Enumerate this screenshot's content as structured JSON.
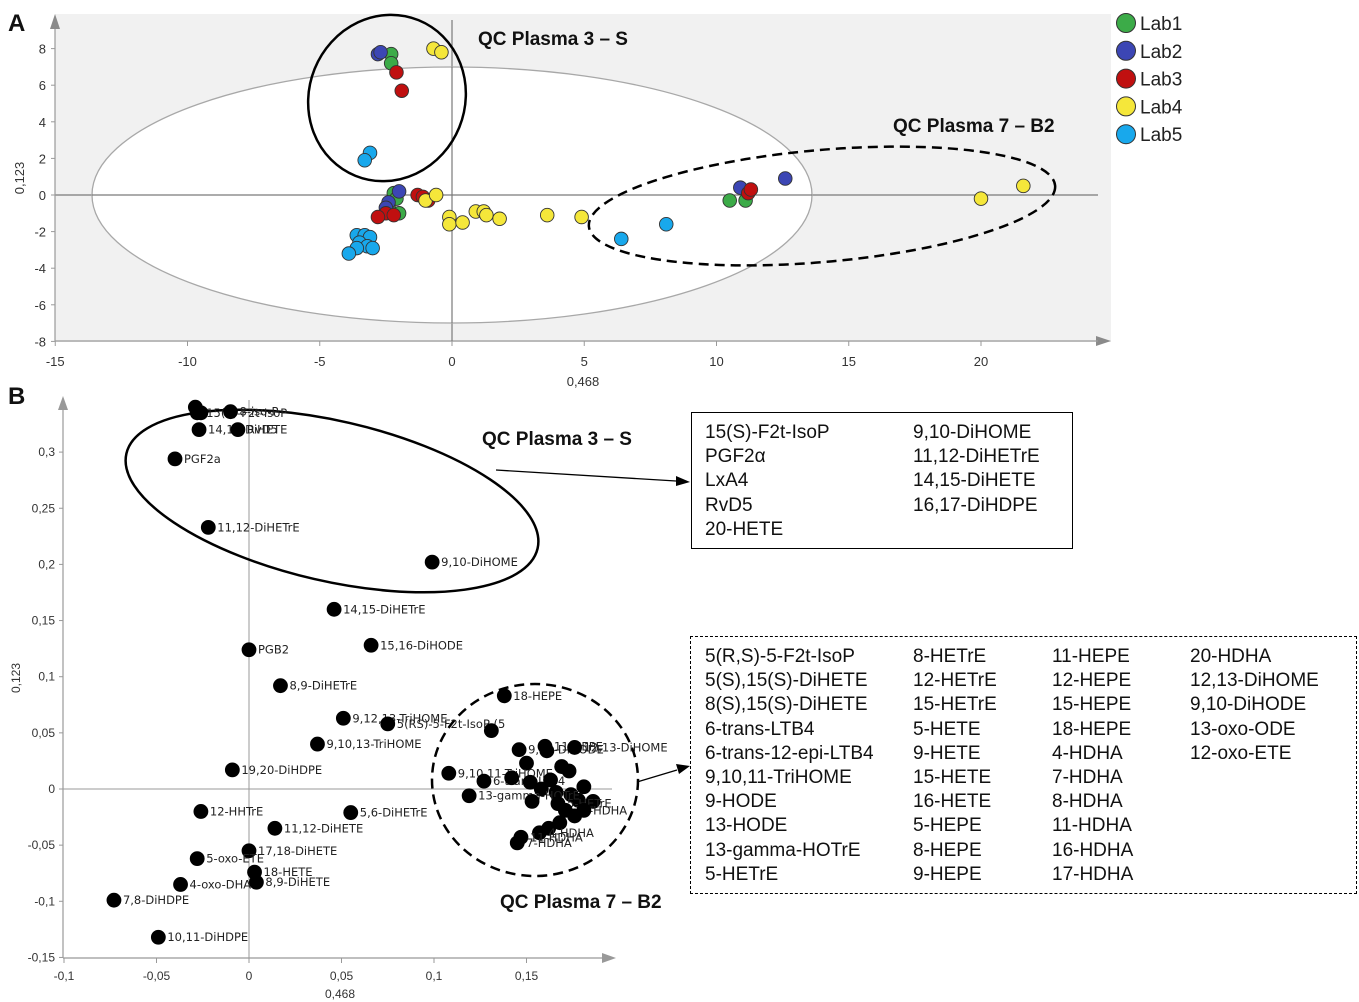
{
  "panelA": {
    "letter": "A",
    "xlabel": "0,468",
    "ylabel": "0,123",
    "xticks": [
      -15,
      -10,
      -5,
      0,
      5,
      10,
      15,
      20
    ],
    "yticks": [
      -8,
      -6,
      -4,
      -2,
      0,
      2,
      4,
      6,
      8
    ],
    "annotations": [
      "QC Plasma 3 – S",
      "QC Plasma 7 – B2"
    ],
    "legend": [
      {
        "name": "Lab1",
        "color": "#3cab48"
      },
      {
        "name": "Lab2",
        "color": "#3c46b4"
      },
      {
        "name": "Lab3",
        "color": "#c01010"
      },
      {
        "name": "Lab4",
        "color": "#f5e73a"
      },
      {
        "name": "Lab5",
        "color": "#18a8ec"
      }
    ]
  },
  "panelB": {
    "letter": "B",
    "xlabel": "0,468",
    "ylabel": "0,123",
    "xticks": [
      "-0,1",
      "-0,05",
      "0",
      "0,05",
      "0,1",
      "0,15"
    ],
    "yticks": [
      "-0,15",
      "-0,1",
      "-0,05",
      "0",
      "0,05",
      "0,1",
      "0,15",
      "0,2",
      "0,25",
      "0,3"
    ],
    "annotations": [
      "QC Plasma 3 – S",
      "QC Plasma 7 – B2"
    ]
  },
  "chart_data": [
    {
      "type": "scatter",
      "panel": "A",
      "xlabel": "0,468",
      "ylabel": "0,123",
      "xlim": [
        -15,
        24
      ],
      "ylim": [
        -8,
        9.5
      ],
      "grid": false,
      "legend_position": "top-right",
      "series": [
        {
          "name": "Lab1",
          "color": "#3cab48",
          "points": [
            [
              -2.3,
              7.7
            ],
            [
              -2.3,
              7.2
            ],
            [
              -2.2,
              0.1
            ],
            [
              -2.1,
              -0.2
            ],
            [
              -2.4,
              -0.6
            ],
            [
              -2.0,
              -1.0
            ],
            [
              10.5,
              -0.3
            ],
            [
              11.1,
              -0.3
            ]
          ]
        },
        {
          "name": "Lab2",
          "color": "#3c46b4",
          "points": [
            [
              -2.8,
              7.7
            ],
            [
              -2.7,
              7.8
            ],
            [
              -2.0,
              0.2
            ],
            [
              -2.4,
              -0.4
            ],
            [
              -2.5,
              -0.7
            ],
            [
              10.9,
              0.4
            ],
            [
              12.6,
              0.9
            ]
          ]
        },
        {
          "name": "Lab3",
          "color": "#c01010",
          "points": [
            [
              -2.1,
              6.7
            ],
            [
              -1.9,
              5.7
            ],
            [
              -2.5,
              -1.0
            ],
            [
              -2.8,
              -1.2
            ],
            [
              -2.2,
              -1.1
            ],
            [
              -1.3,
              0.0
            ],
            [
              -1.1,
              -0.1
            ],
            [
              -0.9,
              -0.3
            ],
            [
              11.2,
              0.1
            ],
            [
              11.3,
              0.3
            ]
          ]
        },
        {
          "name": "Lab4",
          "color": "#f5e73a",
          "points": [
            [
              -0.7,
              8.0
            ],
            [
              -0.4,
              7.8
            ],
            [
              -1.0,
              -0.3
            ],
            [
              -0.6,
              0.0
            ],
            [
              -0.1,
              -1.2
            ],
            [
              -0.1,
              -1.6
            ],
            [
              0.4,
              -1.5
            ],
            [
              0.9,
              -0.9
            ],
            [
              1.2,
              -0.9
            ],
            [
              1.3,
              -1.1
            ],
            [
              1.8,
              -1.3
            ],
            [
              3.6,
              -1.1
            ],
            [
              4.9,
              -1.2
            ],
            [
              20.0,
              -0.2
            ],
            [
              21.6,
              0.5
            ]
          ]
        },
        {
          "name": "Lab5",
          "color": "#18a8ec",
          "points": [
            [
              -3.1,
              2.3
            ],
            [
              -3.3,
              1.9
            ],
            [
              -3.6,
              -2.2
            ],
            [
              -3.3,
              -2.2
            ],
            [
              -3.1,
              -2.3
            ],
            [
              -3.5,
              -2.6
            ],
            [
              -3.2,
              -2.8
            ],
            [
              -3.6,
              -2.9
            ],
            [
              -3.0,
              -2.9
            ],
            [
              -3.9,
              -3.2
            ],
            [
              6.4,
              -2.4
            ],
            [
              8.1,
              -1.6
            ]
          ]
        }
      ]
    },
    {
      "type": "scatter",
      "panel": "B",
      "xlabel": "0,468",
      "ylabel": "0,123",
      "xlim": [
        -0.1,
        0.2
      ],
      "ylim": [
        -0.15,
        0.345
      ],
      "grid": false,
      "points": [
        {
          "x": -0.029,
          "y": 0.34,
          "label": ""
        },
        {
          "x": -0.028,
          "y": 0.335,
          "label": "15(S)-F2t-IsoP"
        },
        {
          "x": -0.026,
          "y": 0.335,
          "label": ""
        },
        {
          "x": -0.01,
          "y": 0.336,
          "label": "8-iso-P"
        },
        {
          "x": -0.027,
          "y": 0.32,
          "label": "14,15-DiHETE"
        },
        {
          "x": -0.006,
          "y": 0.32,
          "label": "RvD5"
        },
        {
          "x": -0.04,
          "y": 0.294,
          "label": "PGF2a"
        },
        {
          "x": -0.022,
          "y": 0.233,
          "label": "11,12-DiHETrE"
        },
        {
          "x": 0.099,
          "y": 0.202,
          "label": "9,10-DiHOME"
        },
        {
          "x": 0.046,
          "y": 0.16,
          "label": "14,15-DiHETrE"
        },
        {
          "x": 0.066,
          "y": 0.128,
          "label": "15,16-DiHODE"
        },
        {
          "x": 0.0,
          "y": 0.124,
          "label": "PGB2"
        },
        {
          "x": 0.017,
          "y": 0.092,
          "label": "8,9-DiHETrE"
        },
        {
          "x": 0.051,
          "y": 0.063,
          "label": "9,12,13-TriHOME"
        },
        {
          "x": 0.075,
          "y": 0.058,
          "label": "5(RS)-5-F2t-IsoP (5"
        },
        {
          "x": 0.037,
          "y": 0.04,
          "label": "9,10,13-TriHOME"
        },
        {
          "x": -0.009,
          "y": 0.017,
          "label": "19,20-DiHDPE"
        },
        {
          "x": -0.026,
          "y": -0.02,
          "label": "12-HHTrE"
        },
        {
          "x": 0.055,
          "y": -0.021,
          "label": "5,6-DiHETrE"
        },
        {
          "x": 0.014,
          "y": -0.035,
          "label": "11,12-DiHETE"
        },
        {
          "x": 0.0,
          "y": -0.055,
          "label": "17,18-DiHETE"
        },
        {
          "x": -0.028,
          "y": -0.062,
          "label": "5-oxo-ETE"
        },
        {
          "x": 0.003,
          "y": -0.074,
          "label": "18-HETE"
        },
        {
          "x": 0.004,
          "y": -0.083,
          "label": "8,9-DiHETE"
        },
        {
          "x": -0.037,
          "y": -0.085,
          "label": "4-oxo-DHA"
        },
        {
          "x": -0.073,
          "y": -0.099,
          "label": "7,8-DiHDPE"
        },
        {
          "x": -0.049,
          "y": -0.132,
          "label": "10,11-DiHDPE"
        },
        {
          "x": 0.138,
          "y": 0.083,
          "label": "18-HEPE"
        },
        {
          "x": 0.131,
          "y": 0.052,
          "label": ""
        },
        {
          "x": 0.146,
          "y": 0.035,
          "label": "9,10-DiHODE"
        },
        {
          "x": 0.16,
          "y": 0.038,
          "label": "11-HEPE"
        },
        {
          "x": 0.176,
          "y": 0.037,
          "label": "12,13-DiHOME"
        },
        {
          "x": 0.15,
          "y": 0.023,
          "label": ""
        },
        {
          "x": 0.161,
          "y": 0.034,
          "label": ""
        },
        {
          "x": 0.169,
          "y": 0.02,
          "label": ""
        },
        {
          "x": 0.173,
          "y": 0.016,
          "label": ""
        },
        {
          "x": 0.108,
          "y": 0.014,
          "label": "9,10,11-TriHOME"
        },
        {
          "x": 0.127,
          "y": 0.007,
          "label": "6-trans-LTB4"
        },
        {
          "x": 0.142,
          "y": 0.01,
          "label": ""
        },
        {
          "x": 0.152,
          "y": 0.006,
          "label": ""
        },
        {
          "x": 0.163,
          "y": 0.008,
          "label": ""
        },
        {
          "x": 0.181,
          "y": 0.002,
          "label": ""
        },
        {
          "x": 0.158,
          "y": 0.0,
          "label": ""
        },
        {
          "x": 0.166,
          "y": -0.003,
          "label": ""
        },
        {
          "x": 0.174,
          "y": -0.005,
          "label": ""
        },
        {
          "x": 0.178,
          "y": -0.01,
          "label": ""
        },
        {
          "x": 0.186,
          "y": -0.011,
          "label": ""
        },
        {
          "x": 0.119,
          "y": -0.006,
          "label": "13-gamma-HOTrE"
        },
        {
          "x": 0.153,
          "y": -0.011,
          "label": ""
        },
        {
          "x": 0.167,
          "y": -0.013,
          "label": "5-HETrE"
        },
        {
          "x": 0.171,
          "y": -0.019,
          "label": "16-HDHA"
        },
        {
          "x": 0.181,
          "y": -0.019,
          "label": ""
        },
        {
          "x": 0.176,
          "y": -0.024,
          "label": ""
        },
        {
          "x": 0.168,
          "y": -0.03,
          "label": ""
        },
        {
          "x": 0.162,
          "y": -0.035,
          "label": ""
        },
        {
          "x": 0.157,
          "y": -0.039,
          "label": "4-HDHA"
        },
        {
          "x": 0.147,
          "y": -0.043,
          "label": "11-HDHA"
        },
        {
          "x": 0.145,
          "y": -0.048,
          "label": "7-HDHA"
        }
      ]
    }
  ],
  "boxes": {
    "qc3": {
      "columns": [
        [
          "15(S)-F2t-IsoP",
          "PGF2α",
          "LxA4",
          "RvD5",
          "20-HETE"
        ],
        [
          "9,10-DiHOME",
          "11,12-DiHETrE",
          "14,15-DiHETE",
          "16,17-DiHDPE"
        ]
      ]
    },
    "qc7": {
      "columns": [
        [
          "5(R,S)-5-F2t-IsoP",
          "5(S),15(S)-DiHETE",
          "8(S),15(S)-DiHETE",
          "6-trans-LTB4",
          "6-trans-12-epi-LTB4",
          "9,10,11-TriHOME",
          "9-HODE",
          "13-HODE",
          "13-gamma-HOTrE",
          "5-HETrE"
        ],
        [
          "8-HETrE",
          "12-HETrE",
          "15-HETrE",
          "5-HETE",
          "9-HETE",
          "15-HETE",
          "16-HETE",
          "5-HEPE",
          "8-HEPE",
          "9-HEPE"
        ],
        [
          "11-HEPE",
          "12-HEPE",
          "15-HEPE",
          "18-HEPE",
          "4-HDHA",
          "7-HDHA",
          "8-HDHA",
          "11-HDHA",
          "16-HDHA",
          "17-HDHA"
        ],
        [
          "20-HDHA",
          "12,13-DiHOME",
          "9,10-DiHODE",
          "13-oxo-ODE",
          "12-oxo-ETE"
        ]
      ]
    }
  }
}
